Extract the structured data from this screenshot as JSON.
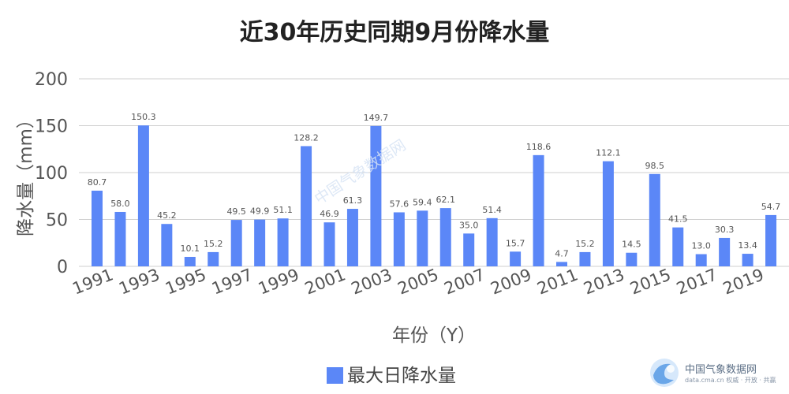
{
  "chart_data": {
    "type": "bar",
    "title": "近30年历史同期9月份降水量",
    "ylabel": "降水量（mm）",
    "xlabel": "年份（Y）",
    "ylim": [
      0,
      200
    ],
    "yticks": [
      "0",
      "50",
      "100",
      "150",
      "200"
    ],
    "grid": true,
    "legend_position": "bottom",
    "bar_color": "#5b87f7",
    "categories": [
      "1991",
      "1992",
      "1993",
      "1994",
      "1995",
      "1996",
      "1997",
      "1998",
      "1999",
      "2000",
      "2001",
      "2002",
      "2003",
      "2004",
      "2005",
      "2006",
      "2007",
      "2008",
      "2009",
      "2010",
      "2011",
      "2012",
      "2013",
      "2014",
      "2015",
      "2016",
      "2017",
      "2018",
      "2019",
      "2020"
    ],
    "tick_labels": [
      "1991",
      "1993",
      "1995",
      "1997",
      "1999",
      "2001",
      "2003",
      "2005",
      "2007",
      "2009",
      "2011",
      "2013",
      "2015",
      "2017",
      "2019"
    ],
    "series": [
      {
        "name": "最大日降水量",
        "values": [
          80.7,
          58.0,
          150.3,
          45.2,
          10.1,
          15.2,
          49.5,
          49.9,
          51.1,
          128.2,
          46.9,
          61.3,
          149.7,
          57.6,
          59.4,
          62.1,
          35.0,
          51.4,
          15.7,
          118.6,
          4.7,
          15.2,
          112.1,
          14.5,
          98.5,
          41.5,
          13.0,
          30.3,
          13.4,
          54.7
        ],
        "labels": [
          "80.7",
          "58.0",
          "150.3",
          "45.2",
          "10.1",
          "15.2",
          "49.5",
          "49.9",
          "51.1",
          "128.2",
          "46.9",
          "61.3",
          "149.7",
          "57.6",
          "59.4",
          "62.1",
          "35.0",
          "51.4",
          "15.7",
          "118.6",
          "4.7",
          "15.2",
          "112.1",
          "14.5",
          "98.5",
          "41.5",
          "13.0",
          "30.3",
          "13.4",
          "54.7"
        ]
      }
    ]
  },
  "watermark": {
    "name": "中国气象数据网",
    "subtitle": "data.cma.cn 权威 · 开放 · 共赢",
    "diagonal": "中国气象数据网",
    "logo": "cma-logo-icon"
  }
}
